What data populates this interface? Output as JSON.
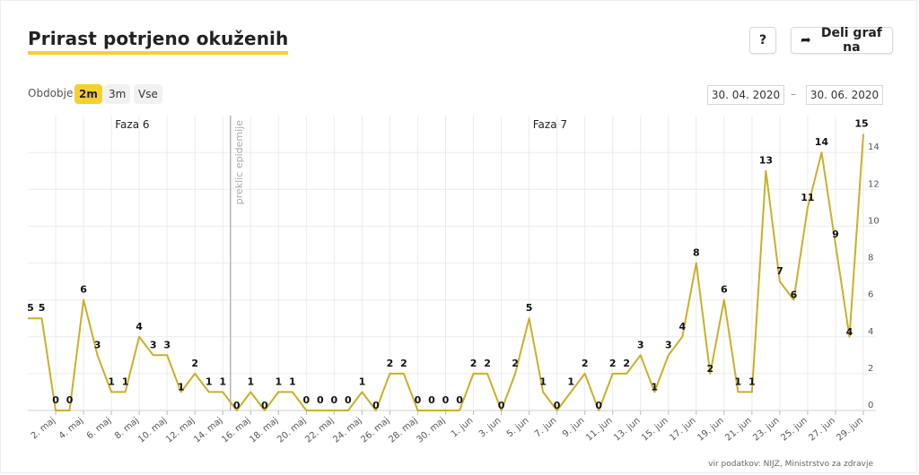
{
  "header": {
    "title": "Prirast potrjeno okuženih",
    "help_label": "?",
    "share_label": "Deli graf na",
    "share_icon": "share-arrow-icon"
  },
  "controls": {
    "period_label": "Obdobje",
    "periods": [
      "2m",
      "3m",
      "Vse"
    ],
    "active_period": "2m",
    "date_from": "30. 04. 2020",
    "date_sep": "–",
    "date_to": "30. 06. 2020"
  },
  "source": "vir podatkov: NIJZ, Ministrstvo za zdravje",
  "chart_data": {
    "type": "line",
    "x": [
      "30.4.",
      "1.5.",
      "2.5.",
      "3.5.",
      "4.5.",
      "5.5.",
      "6.5.",
      "7.5.",
      "8.5.",
      "9.5.",
      "10.5.",
      "11.5.",
      "12.5.",
      "13.5.",
      "14.5.",
      "15.5.",
      "16.5.",
      "17.5.",
      "18.5.",
      "19.5.",
      "20.5.",
      "21.5.",
      "22.5.",
      "23.5.",
      "24.5.",
      "25.5.",
      "26.5.",
      "27.5.",
      "28.5.",
      "29.5.",
      "30.5.",
      "31.5.",
      "1.6.",
      "2.6.",
      "3.6.",
      "4.6.",
      "5.6.",
      "6.6.",
      "7.6.",
      "8.6.",
      "9.6.",
      "10.6.",
      "11.6.",
      "12.6.",
      "13.6.",
      "14.6.",
      "15.6.",
      "16.6.",
      "17.6.",
      "18.6.",
      "19.6.",
      "20.6.",
      "21.6.",
      "22.6.",
      "23.6.",
      "24.6.",
      "25.6.",
      "26.6.",
      "27.6.",
      "28.6.",
      "29.6."
    ],
    "values": [
      5,
      5,
      0,
      0,
      6,
      3,
      1,
      1,
      4,
      3,
      3,
      1,
      2,
      1,
      1,
      0,
      1,
      0,
      1,
      1,
      0,
      0,
      0,
      0,
      1,
      0,
      2,
      2,
      0,
      0,
      0,
      0,
      2,
      2,
      0,
      2,
      5,
      1,
      0,
      1,
      2,
      0,
      2,
      2,
      3,
      1,
      3,
      4,
      8,
      2,
      6,
      1,
      1,
      13,
      7,
      6,
      11,
      14,
      9,
      4,
      15
    ],
    "x_tick_labels": [
      "2. maj",
      "4. maj",
      "6. maj",
      "8. maj",
      "10. maj",
      "12. maj",
      "14. maj",
      "16. maj",
      "18. maj",
      "20. maj",
      "22. maj",
      "24. maj",
      "26. maj",
      "28. maj",
      "30. maj",
      "1. jun",
      "3. jun",
      "5. jun",
      "7. jun",
      "9. jun",
      "11. jun",
      "13. jun",
      "15. jun",
      "17. jun",
      "19. jun",
      "21. jun",
      "23. jun",
      "25. jun",
      "27. jun",
      "29. jun"
    ],
    "y_ticks": [
      0,
      2,
      4,
      6,
      8,
      10,
      12,
      14
    ],
    "ylim": [
      0,
      16
    ],
    "grid": true,
    "line_color": "#c8b02a",
    "phases": [
      {
        "label": "Faza 6",
        "start_index": 0,
        "end_index": 15
      },
      {
        "label": "Faza 7",
        "start_index": 15,
        "end_index": 60
      }
    ],
    "annotation": {
      "label": "preklic epidemije",
      "index": 15
    }
  }
}
